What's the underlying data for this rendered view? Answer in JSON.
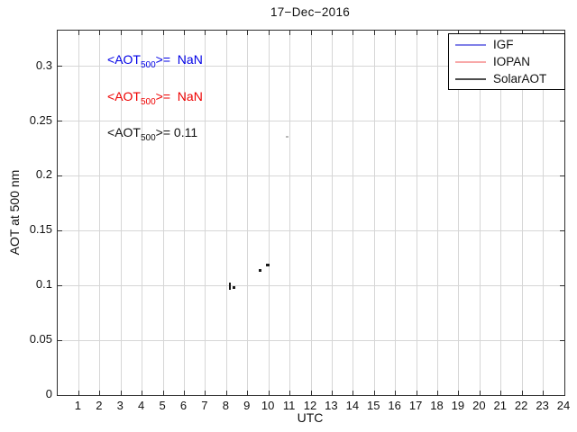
{
  "chart": {
    "title": "17−Dec−2016",
    "xlabel": "UTC",
    "ylabel": "AOT at 500 nm"
  },
  "chart_data": {
    "type": "scatter",
    "title": "17−Dec−2016",
    "xlabel": "UTC",
    "ylabel": "AOT at 500 nm",
    "xlim": [
      0,
      24
    ],
    "ylim": [
      0,
      0.3326
    ],
    "xticks": [
      1,
      2,
      3,
      4,
      5,
      6,
      7,
      8,
      9,
      10,
      11,
      12,
      13,
      14,
      15,
      16,
      17,
      18,
      19,
      20,
      21,
      22,
      23,
      24
    ],
    "yticks": [
      0,
      0.05,
      0.1,
      0.15,
      0.2,
      0.25,
      0.3
    ],
    "ytick_labels": [
      "0",
      "0.05",
      "0.1",
      "0.15",
      "0.2",
      "0.25",
      "0.3"
    ],
    "grid": true,
    "legend_position": "top-right",
    "series": [
      {
        "name": "IGF",
        "color": "#8080e8",
        "x": [],
        "y": [],
        "note": "no data (NaN)"
      },
      {
        "name": "IOPAN",
        "color": "#f8a8a8",
        "x": [],
        "y": [],
        "note": "no data (NaN)"
      },
      {
        "name": "SolarAOT",
        "color": "#1a1a1a",
        "x": [
          8.14,
          8.37,
          9.6,
          9.95
        ],
        "y": [
          0.099,
          0.098,
          0.114,
          0.119
        ]
      }
    ],
    "faint_point": {
      "x": 10.87,
      "y": 0.236,
      "color": "#b8b8b8"
    },
    "points": [
      {
        "x": 8.14,
        "y": 0.0995,
        "shape": "vdash",
        "color": "#1a1a1a"
      },
      {
        "x": 8.37,
        "y": 0.0985,
        "shape": "dot",
        "color": "#1a1a1a"
      },
      {
        "x": 9.6,
        "y": 0.1135,
        "shape": "dot",
        "color": "#1a1a1a"
      },
      {
        "x": 9.95,
        "y": 0.119,
        "shape": "dot2",
        "color": "#1a1a1a"
      },
      {
        "x": 10.87,
        "y": 0.236,
        "shape": "faint",
        "color": "#b8b8b8"
      }
    ],
    "annotations": [
      {
        "prefix": "<AOT",
        "sub": "500",
        "suffix": ">=  NaN",
        "color": "#0000e6",
        "x": 2.35,
        "y": 0.3055
      },
      {
        "prefix": "<AOT",
        "sub": "500",
        "suffix": ">=  NaN",
        "color": "#ee0000",
        "x": 2.35,
        "y": 0.2718
      },
      {
        "prefix": "<AOT",
        "sub": "500",
        "suffix": ">= 0.11",
        "color": "#111111",
        "x": 2.35,
        "y": 0.239
      }
    ]
  },
  "legend": {
    "items": [
      {
        "label": "IGF",
        "color": "#8080e8"
      },
      {
        "label": "IOPAN",
        "color": "#f8a8a8"
      },
      {
        "label": "SolarAOT",
        "color": "#4d4d4d"
      }
    ]
  },
  "colors": {
    "grid": "#d6d6d6",
    "axis": "#2e2e2e",
    "background": "#ffffff"
  }
}
